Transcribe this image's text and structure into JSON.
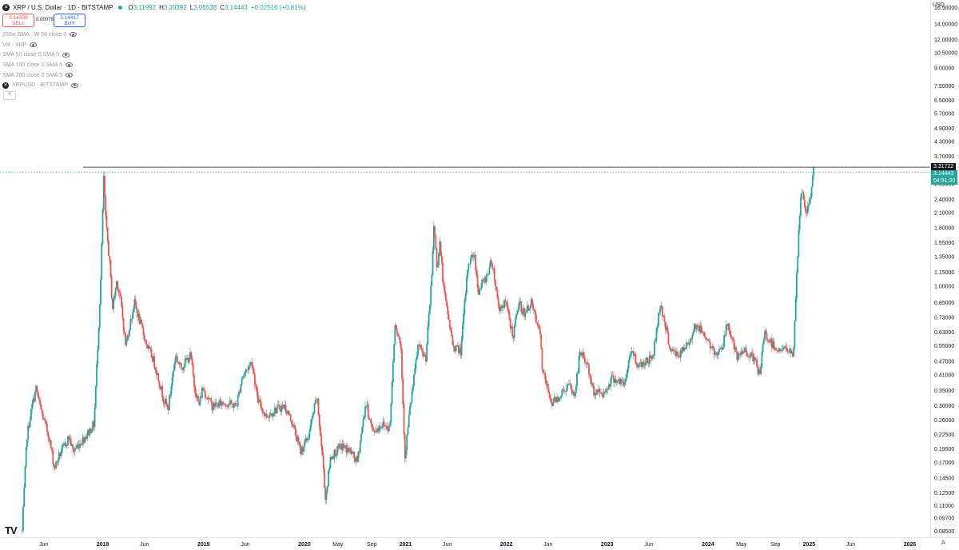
{
  "header": {
    "symbol_icon": "xrp-logo-icon",
    "title": "XRP / U.S. Dollar · 1D · BITSTAMP",
    "ohlc": [
      {
        "label": "O",
        "value": "3.11992"
      },
      {
        "label": "H",
        "value": "3.20392"
      },
      {
        "label": "L",
        "value": "3.05538"
      },
      {
        "label": "C",
        "value": "3.14443"
      }
    ],
    "change": "+0.02516 (+0.81%)"
  },
  "trade": {
    "sell_price": "3.14338",
    "sell_label": "SELL",
    "spread": "0.00079",
    "buy_price": "3.14417",
    "buy_label": "BUY"
  },
  "indicators": [
    {
      "label": "200w SMA · W 50 close 0",
      "icon": "eye-icon"
    },
    {
      "label": "Vol · XRP",
      "icon": "eye-icon"
    },
    {
      "label": "SMA 50 close 0 SMA 5",
      "icon": "eye-icon"
    },
    {
      "label": "SMA 100 close 0 SMA 5",
      "icon": "eye-icon"
    },
    {
      "label": "SMA 200 close 0 SMA 5",
      "icon": "eye-icon"
    },
    {
      "label": "XRPUSD · BITSTAMP",
      "icon": "eye-icon"
    }
  ],
  "collapse_label": "^",
  "currency_label": "USD",
  "price_badges": {
    "max": "3.31722",
    "last": "3.14443",
    "countdown": "04:51:20"
  },
  "auto_label": "A",
  "colors": {
    "up": "#26a69a",
    "down": "#ef5350",
    "hline": "#4c525e"
  },
  "chart_data": {
    "type": "candlestick",
    "symbol": "XRPUSD",
    "scale": "log",
    "ylim": [
      0.08,
      17.0
    ],
    "y_ticks": [
      "16.50000",
      "14.00000",
      "12.00000",
      "10.50000",
      "9.00000",
      "7.50000",
      "6.50000",
      "5.70000",
      "4.90000",
      "4.30000",
      "3.70000",
      "2.80000",
      "2.40000",
      "2.10000",
      "1.80000",
      "1.55000",
      "1.35000",
      "1.15000",
      "1.00000",
      "0.85000",
      "0.73000",
      "0.63000",
      "0.55000",
      "0.47000",
      "0.41000",
      "0.35000",
      "0.30000",
      "0.26000",
      "0.22500",
      "0.19500",
      "0.17000",
      "0.14500",
      "0.12500",
      "0.11000",
      "0.09700",
      "0.08500"
    ],
    "x_ticks": [
      {
        "label": "Jun",
        "date": "2017-06-01"
      },
      {
        "label": "2018",
        "date": "2018-01-01",
        "bold": true
      },
      {
        "label": "Jun",
        "date": "2018-06-01"
      },
      {
        "label": "2019",
        "date": "2019-01-01",
        "bold": true
      },
      {
        "label": "Jun",
        "date": "2019-06-01"
      },
      {
        "label": "2020",
        "date": "2020-01-01",
        "bold": true
      },
      {
        "label": "May",
        "date": "2020-05-01"
      },
      {
        "label": "Sep",
        "date": "2020-09-01"
      },
      {
        "label": "2021",
        "date": "2021-01-01",
        "bold": true
      },
      {
        "label": "Jun",
        "date": "2021-06-01"
      },
      {
        "label": "2022",
        "date": "2022-01-01",
        "bold": true
      },
      {
        "label": "Jun",
        "date": "2022-06-01"
      },
      {
        "label": "2023",
        "date": "2023-01-01",
        "bold": true
      },
      {
        "label": "Jun",
        "date": "2023-06-01"
      },
      {
        "label": "2024",
        "date": "2024-01-01",
        "bold": true
      },
      {
        "label": "May",
        "date": "2024-05-01"
      },
      {
        "label": "Sep",
        "date": "2024-09-01"
      },
      {
        "label": "2025",
        "date": "2025-01-01",
        "bold": true
      },
      {
        "label": "Jun",
        "date": "2025-06-01"
      },
      {
        "label": "2026",
        "date": "2026-01-01",
        "bold": true
      }
    ],
    "x_range": [
      "2017-03-10",
      "2026-03-10"
    ],
    "horizontal_line": 3.31722,
    "last_price": 3.14443,
    "path": [
      [
        "2017-03-15",
        0.085
      ],
      [
        "2017-04-01",
        0.22
      ],
      [
        "2017-04-20",
        0.3
      ],
      [
        "2017-05-05",
        0.36
      ],
      [
        "2017-05-15",
        0.31
      ],
      [
        "2017-06-01",
        0.26
      ],
      [
        "2017-06-20",
        0.22
      ],
      [
        "2017-07-10",
        0.16
      ],
      [
        "2017-07-25",
        0.18
      ],
      [
        "2017-08-15",
        0.2
      ],
      [
        "2017-09-01",
        0.22
      ],
      [
        "2017-09-15",
        0.19
      ],
      [
        "2017-10-15",
        0.21
      ],
      [
        "2017-11-10",
        0.23
      ],
      [
        "2017-11-30",
        0.25
      ],
      [
        "2017-12-12",
        0.5
      ],
      [
        "2017-12-25",
        1.1
      ],
      [
        "2018-01-04",
        3.0
      ],
      [
        "2018-01-12",
        1.9
      ],
      [
        "2018-01-25",
        1.3
      ],
      [
        "2018-02-05",
        0.8
      ],
      [
        "2018-02-20",
        1.05
      ],
      [
        "2018-03-05",
        0.9
      ],
      [
        "2018-03-25",
        0.55
      ],
      [
        "2018-04-25",
        0.85
      ],
      [
        "2018-05-15",
        0.7
      ],
      [
        "2018-06-10",
        0.55
      ],
      [
        "2018-07-05",
        0.47
      ],
      [
        "2018-08-10",
        0.32
      ],
      [
        "2018-08-25",
        0.29
      ],
      [
        "2018-09-21",
        0.5
      ],
      [
        "2018-10-10",
        0.44
      ],
      [
        "2018-11-15",
        0.5
      ],
      [
        "2018-11-28",
        0.37
      ],
      [
        "2018-12-15",
        0.3
      ],
      [
        "2018-12-28",
        0.36
      ],
      [
        "2019-02-01",
        0.3
      ],
      [
        "2019-03-15",
        0.31
      ],
      [
        "2019-04-30",
        0.3
      ],
      [
        "2019-05-20",
        0.4
      ],
      [
        "2019-06-25",
        0.47
      ],
      [
        "2019-07-15",
        0.32
      ],
      [
        "2019-08-15",
        0.27
      ],
      [
        "2019-09-20",
        0.29
      ],
      [
        "2019-10-20",
        0.3
      ],
      [
        "2019-11-15",
        0.26
      ],
      [
        "2019-12-18",
        0.19
      ],
      [
        "2020-01-15",
        0.22
      ],
      [
        "2020-02-15",
        0.33
      ],
      [
        "2020-03-12",
        0.15
      ],
      [
        "2020-03-16",
        0.115
      ],
      [
        "2020-04-05",
        0.18
      ],
      [
        "2020-05-15",
        0.2
      ],
      [
        "2020-06-15",
        0.19
      ],
      [
        "2020-07-10",
        0.17
      ],
      [
        "2020-08-10",
        0.31
      ],
      [
        "2020-09-05",
        0.23
      ],
      [
        "2020-10-10",
        0.25
      ],
      [
        "2020-11-05",
        0.24
      ],
      [
        "2020-11-24",
        0.7
      ],
      [
        "2020-12-15",
        0.55
      ],
      [
        "2020-12-30",
        0.18
      ],
      [
        "2021-01-15",
        0.28
      ],
      [
        "2021-02-01",
        0.4
      ],
      [
        "2021-02-15",
        0.55
      ],
      [
        "2021-03-15",
        0.48
      ],
      [
        "2021-04-05",
        1.05
      ],
      [
        "2021-04-14",
        1.9
      ],
      [
        "2021-04-25",
        1.2
      ],
      [
        "2021-05-05",
        1.55
      ],
      [
        "2021-05-20",
        0.95
      ],
      [
        "2021-06-22",
        0.55
      ],
      [
        "2021-07-20",
        0.52
      ],
      [
        "2021-08-15",
        1.25
      ],
      [
        "2021-09-06",
        1.4
      ],
      [
        "2021-09-22",
        0.95
      ],
      [
        "2021-10-20",
        1.1
      ],
      [
        "2021-11-10",
        1.3
      ],
      [
        "2021-12-05",
        0.8
      ],
      [
        "2021-12-30",
        0.85
      ],
      [
        "2022-01-25",
        0.6
      ],
      [
        "2022-02-15",
        0.85
      ],
      [
        "2022-03-10",
        0.75
      ],
      [
        "2022-03-30",
        0.86
      ],
      [
        "2022-05-05",
        0.6
      ],
      [
        "2022-05-12",
        0.42
      ],
      [
        "2022-06-15",
        0.31
      ],
      [
        "2022-07-10",
        0.33
      ],
      [
        "2022-08-15",
        0.37
      ],
      [
        "2022-09-05",
        0.33
      ],
      [
        "2022-09-25",
        0.52
      ],
      [
        "2022-10-20",
        0.46
      ],
      [
        "2022-11-10",
        0.35
      ],
      [
        "2022-12-20",
        0.34
      ],
      [
        "2023-01-20",
        0.4
      ],
      [
        "2023-03-05",
        0.37
      ],
      [
        "2023-03-28",
        0.53
      ],
      [
        "2023-04-25",
        0.45
      ],
      [
        "2023-05-20",
        0.47
      ],
      [
        "2023-06-15",
        0.49
      ],
      [
        "2023-07-13",
        0.85
      ],
      [
        "2023-07-25",
        0.72
      ],
      [
        "2023-08-20",
        0.52
      ],
      [
        "2023-09-20",
        0.5
      ],
      [
        "2023-10-25",
        0.57
      ],
      [
        "2023-11-15",
        0.68
      ],
      [
        "2023-12-20",
        0.62
      ],
      [
        "2024-01-25",
        0.5
      ],
      [
        "2024-02-25",
        0.56
      ],
      [
        "2024-03-12",
        0.7
      ],
      [
        "2024-04-15",
        0.48
      ],
      [
        "2024-05-15",
        0.53
      ],
      [
        "2024-06-20",
        0.47
      ],
      [
        "2024-07-05",
        0.41
      ],
      [
        "2024-07-25",
        0.62
      ],
      [
        "2024-08-15",
        0.57
      ],
      [
        "2024-09-10",
        0.53
      ],
      [
        "2024-10-10",
        0.53
      ],
      [
        "2024-11-05",
        0.5
      ],
      [
        "2024-11-16",
        1.05
      ],
      [
        "2024-12-03",
        2.7
      ],
      [
        "2024-12-20",
        2.1
      ],
      [
        "2025-01-05",
        2.35
      ],
      [
        "2025-01-16",
        3.25
      ],
      [
        "2025-01-20",
        3.14
      ]
    ]
  }
}
